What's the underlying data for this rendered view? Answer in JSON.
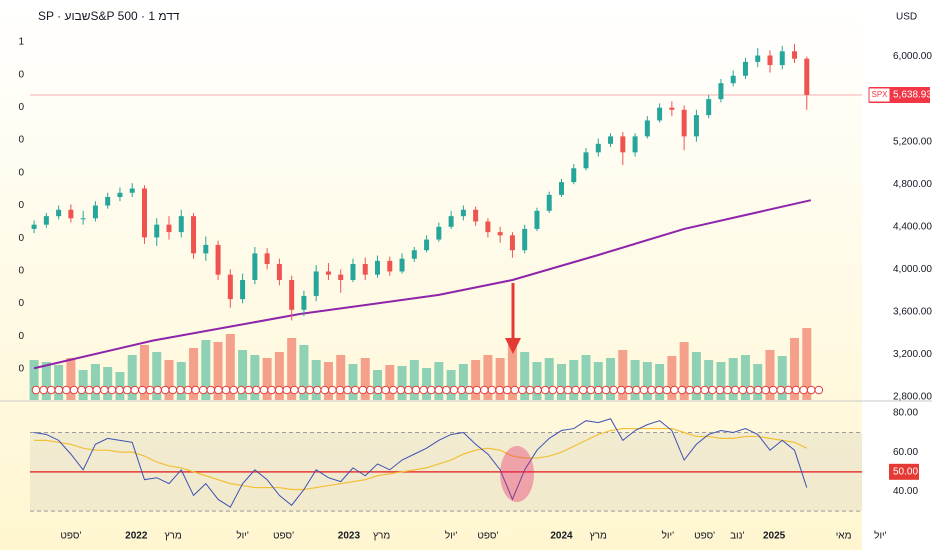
{
  "header": {
    "title": "SP · שבועS&P 500 · 1 דדמ",
    "currency": "USD"
  },
  "chart_data": [
    {
      "type": "candlestick",
      "x": [
        1,
        4,
        7,
        10,
        13,
        16,
        19,
        22,
        25,
        28,
        31,
        34,
        37,
        40,
        43,
        46,
        49,
        52,
        55,
        58,
        61,
        64,
        67,
        70,
        73,
        76,
        79,
        82,
        85,
        88,
        91,
        94,
        97,
        100,
        103,
        106,
        109,
        112,
        115,
        118,
        121,
        124,
        127,
        130,
        133,
        136,
        139,
        142,
        145,
        148,
        151,
        154,
        157,
        160,
        163,
        166,
        169,
        172,
        175,
        178,
        181,
        184,
        187,
        190
      ],
      "open": [
        4380,
        4420,
        4500,
        4560,
        4480,
        4480,
        4600,
        4680,
        4720,
        4760,
        4300,
        4420,
        4350,
        4500,
        4150,
        4230,
        3950,
        3720,
        3900,
        4150,
        4050,
        3900,
        3620,
        3750,
        3980,
        3950,
        3900,
        4050,
        3950,
        4080,
        3980,
        4100,
        4180,
        4280,
        4400,
        4500,
        4560,
        4450,
        4350,
        4320,
        4180,
        4380,
        4550,
        4700,
        4820,
        4950,
        5100,
        5180,
        5250,
        5100,
        5250,
        5400,
        5520,
        5500,
        5250,
        5450,
        5600,
        5750,
        5820,
        5950,
        6010,
        5920,
        6050,
        5980
      ],
      "high": [
        4460,
        4530,
        4600,
        4610,
        4550,
        4640,
        4720,
        4770,
        4810,
        4790,
        4480,
        4500,
        4560,
        4530,
        4310,
        4270,
        4000,
        3960,
        4210,
        4200,
        4100,
        3940,
        3800,
        4040,
        4060,
        4000,
        4100,
        4110,
        4130,
        4120,
        4150,
        4210,
        4320,
        4440,
        4550,
        4600,
        4590,
        4480,
        4400,
        4350,
        4420,
        4580,
        4730,
        4850,
        4990,
        5140,
        5230,
        5280,
        5290,
        5280,
        5440,
        5560,
        5580,
        5540,
        5500,
        5640,
        5790,
        5870,
        5990,
        6080,
        6060,
        6100,
        6120,
        6000
      ],
      "low": [
        4340,
        4390,
        4470,
        4440,
        4420,
        4450,
        4570,
        4640,
        4680,
        4240,
        4220,
        4280,
        4300,
        4100,
        4080,
        3900,
        3640,
        3680,
        3860,
        4000,
        3850,
        3520,
        3560,
        3700,
        3900,
        3780,
        3880,
        3900,
        3920,
        3940,
        3960,
        4070,
        4160,
        4260,
        4380,
        4460,
        4410,
        4300,
        4250,
        4110,
        4150,
        4360,
        4530,
        4680,
        4800,
        4930,
        5060,
        5150,
        4980,
        5060,
        5230,
        5380,
        5440,
        5120,
        5200,
        5420,
        5570,
        5720,
        5790,
        5900,
        5850,
        5880,
        5940,
        5500
      ],
      "close": [
        4420,
        4500,
        4560,
        4480,
        4480,
        4600,
        4680,
        4720,
        4760,
        4300,
        4420,
        4350,
        4500,
        4150,
        4230,
        3950,
        3720,
        3900,
        4150,
        4050,
        3900,
        3620,
        3750,
        3980,
        3950,
        3900,
        4050,
        3950,
        4080,
        3980,
        4100,
        4180,
        4280,
        4400,
        4500,
        4560,
        4450,
        4350,
        4320,
        4180,
        4380,
        4550,
        4700,
        4820,
        4950,
        5100,
        5180,
        5250,
        5100,
        5250,
        5400,
        5520,
        5500,
        5250,
        5450,
        5600,
        5750,
        5820,
        5950,
        6010,
        5920,
        6050,
        5980,
        5640
      ],
      "up_color": "#26a69a",
      "down_color": "#ef5350",
      "xlim": [
        0,
        215
      ],
      "xticks": [
        {
          "value": 10,
          "label": "ספט'"
        },
        {
          "value": 26,
          "label": "2022"
        },
        {
          "value": 35,
          "label": "מרץ"
        },
        {
          "value": 52,
          "label": "יול'"
        },
        {
          "value": 62,
          "label": "ספט'"
        },
        {
          "value": 78,
          "label": "2023"
        },
        {
          "value": 86,
          "label": "מרץ"
        },
        {
          "value": 103,
          "label": "יול'"
        },
        {
          "value": 112,
          "label": "ספט'"
        },
        {
          "value": 130,
          "label": "2024"
        },
        {
          "value": 139,
          "label": "מרץ"
        },
        {
          "value": 156,
          "label": "יול'"
        },
        {
          "value": 165,
          "label": "ספט'"
        },
        {
          "value": 173,
          "label": "נוב'"
        },
        {
          "value": 182,
          "label": "2025"
        },
        {
          "value": 199,
          "label": "מאי"
        },
        {
          "value": 208,
          "label": "יול'"
        }
      ],
      "ylim": [
        2800,
        6250
      ],
      "yticks": [
        {
          "value": 2800,
          "label": "2,800.00"
        },
        {
          "value": 3200,
          "label": "3,200.00"
        },
        {
          "value": 3600,
          "label": "3,600.00"
        },
        {
          "value": 4000,
          "label": "4,000.00"
        },
        {
          "value": 4400,
          "label": "4,400.00"
        },
        {
          "value": 4800,
          "label": "4,800.00"
        },
        {
          "value": 5200,
          "label": "5,200.00"
        },
        {
          "value": 6000,
          "label": "6,000.00"
        }
      ],
      "last_price": {
        "value": 5638.93,
        "label": "5,638.93",
        "tag": "SPX",
        "color": "#f23645"
      },
      "left_ticks": [
        "1",
        "0",
        "0",
        "0",
        "0",
        "0",
        "0",
        "0",
        "0",
        "0",
        "0"
      ],
      "sma": {
        "x": [
          1,
          30,
          66,
          100,
          118,
          139,
          160,
          191
        ],
        "values": [
          3070,
          3330,
          3580,
          3760,
          3900,
          4135,
          4380,
          4650
        ],
        "color": "#8e24aa"
      },
      "volume": {
        "values": [
          40,
          38,
          35,
          42,
          30,
          36,
          33,
          28,
          45,
          55,
          48,
          40,
          38,
          52,
          60,
          58,
          66,
          50,
          45,
          42,
          48,
          62,
          55,
          40,
          38,
          45,
          36,
          42,
          30,
          35,
          34,
          40,
          32,
          38,
          30,
          36,
          40,
          45,
          42,
          55,
          48,
          38,
          42,
          36,
          40,
          45,
          38,
          42,
          50,
          40,
          38,
          36,
          44,
          58,
          48,
          40,
          38,
          42,
          45,
          36,
          50,
          44,
          62,
          72
        ],
        "ylim": [
          0,
          100
        ],
        "up_color": "#8fd1b5",
        "down_color": "#f5a08a"
      }
    },
    {
      "type": "line",
      "series": [
        {
          "color": "#3f51b5",
          "values": [
            70,
            69,
            66,
            59,
            51,
            64,
            67,
            66,
            65,
            46,
            47,
            44,
            51,
            38,
            44,
            36,
            32,
            44,
            51,
            46,
            38,
            33,
            41,
            51,
            47,
            45,
            52,
            48,
            54,
            51,
            56,
            59,
            62,
            66,
            69,
            70,
            64,
            59,
            51,
            36,
            51,
            61,
            67,
            71,
            72,
            76,
            75,
            77,
            66,
            71,
            74,
            76,
            71,
            56,
            64,
            69,
            71,
            70,
            72,
            69,
            61,
            66,
            61,
            42
          ]
        },
        {
          "color": "#f2c037",
          "values": [
            66,
            66,
            65,
            64,
            62,
            61,
            61,
            60,
            60,
            58,
            55,
            53,
            52,
            50,
            48,
            46,
            44,
            43,
            42,
            42,
            42,
            41,
            41,
            42,
            43,
            44,
            45,
            46,
            48,
            49,
            50,
            51,
            52,
            54,
            56,
            59,
            61,
            62,
            61,
            58,
            57,
            57,
            58,
            60,
            63,
            66,
            69,
            71,
            72,
            72,
            72,
            72,
            72,
            70,
            68,
            68,
            67,
            67,
            68,
            68,
            67,
            66,
            65,
            62
          ]
        }
      ],
      "ylim": [
        26,
        85
      ],
      "yticks": [
        {
          "value": 40,
          "label": "40.00"
        },
        {
          "value": 60,
          "label": "60.00"
        },
        {
          "value": 80,
          "label": "80.00"
        }
      ],
      "bands": [
        30,
        70
      ],
      "midline": {
        "value": 50,
        "label": "50.00",
        "color": "#e53935"
      }
    }
  ]
}
